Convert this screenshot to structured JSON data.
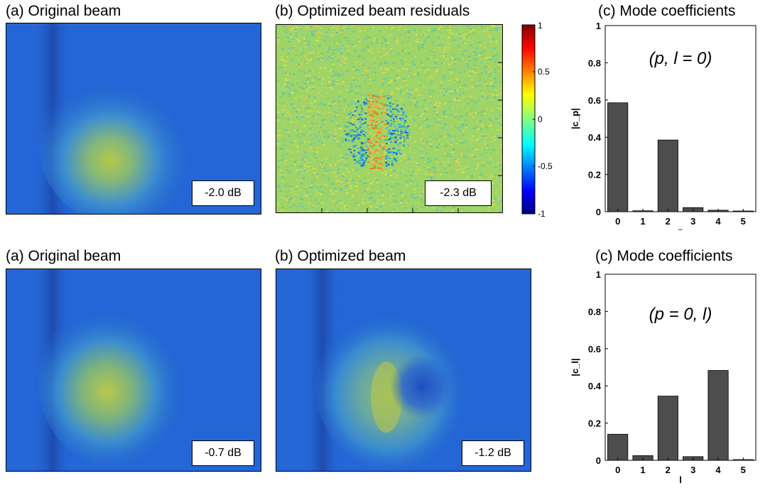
{
  "top_row": {
    "original_title": "(a) Original beam",
    "original_db": "-2.0 dB",
    "residual_title": "(b) Optimized beam residuals",
    "residual_db": "-2.3 dB",
    "colorbar_ticks": [
      "1",
      "0.5",
      "0",
      "-0.5",
      "-1"
    ],
    "chart_title": "(c) Mode coefficients"
  },
  "bottom_row": {
    "original_title": "(a) Original beam",
    "original_db": "-0.7 dB",
    "optimized_title": "(b) Optimized beam",
    "optimized_db": "-1.2 dB",
    "chart_title": "(c) Mode coefficients"
  },
  "colors": {
    "bar": "#4d4d4d",
    "beam_background": "#1f5fd0",
    "beam_core": "#b4c84a"
  },
  "chart_data": [
    {
      "type": "bar",
      "title": "(c) Mode coefficients",
      "annotation": "(p, l = 0)",
      "categories": [
        "0",
        "1",
        "2",
        "3",
        "4",
        "5"
      ],
      "values": [
        0.585,
        0.005,
        0.385,
        0.022,
        0.008,
        0.004
      ],
      "xlabel": "p",
      "ylabel": "|c_p|",
      "ylim": [
        0,
        1
      ],
      "yticks": [
        "0",
        "0.2",
        "0.4",
        "0.6",
        "0.8",
        "1"
      ],
      "grid": false
    },
    {
      "type": "bar",
      "title": "(c) Mode coefficients",
      "annotation": "(p = 0, l)",
      "categories": [
        "0",
        "1",
        "2",
        "3",
        "4",
        "5"
      ],
      "values": [
        0.14,
        0.025,
        0.345,
        0.02,
        0.483,
        0.004
      ],
      "xlabel": "l",
      "ylabel": "|c_l|",
      "ylim": [
        0,
        1
      ],
      "yticks": [
        "0",
        "0.2",
        "0.4",
        "0.6",
        "0.8",
        "1"
      ],
      "grid": false
    }
  ]
}
